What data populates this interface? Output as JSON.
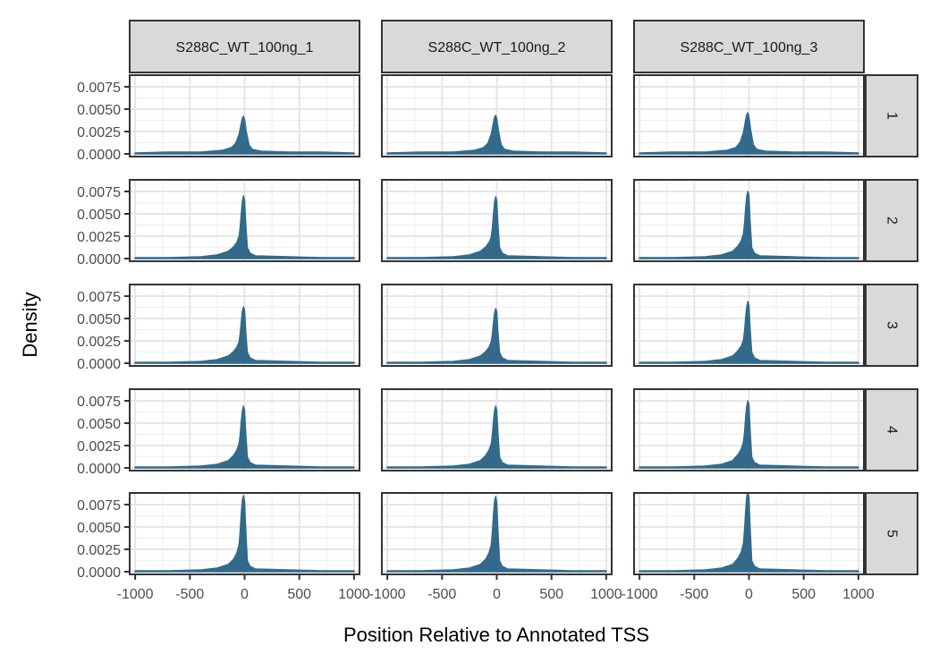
{
  "chart_data": {
    "type": "area",
    "facet_columns": [
      "S288C_WT_100ng_1",
      "S288C_WT_100ng_2",
      "S288C_WT_100ng_3"
    ],
    "facet_rows": [
      "1",
      "2",
      "3",
      "4",
      "5"
    ],
    "xlabel": "Position Relative to Annotated TSS",
    "ylabel": "Density",
    "xlim": [
      -1050,
      1050
    ],
    "ylim": [
      -0.0003,
      0.0088
    ],
    "x_ticks": [
      -1000,
      -500,
      0,
      500,
      1000
    ],
    "x_tick_labels": [
      "-1000",
      "-500",
      "0",
      "500",
      "1000"
    ],
    "y_ticks": [
      0,
      0.0025,
      0.005,
      0.0075
    ],
    "y_tick_labels": [
      "0.0000",
      "0.0025",
      "0.0050",
      "0.0075"
    ],
    "grid": true,
    "fill_color": "#336a8b",
    "panels": [
      {
        "row": "1",
        "col": "S288C_WT_100ng_1",
        "x": [
          -1000,
          -700,
          -400,
          -200,
          -120,
          -80,
          -50,
          -30,
          -20,
          -10,
          0,
          15,
          40,
          70,
          150,
          400,
          700,
          1000
        ],
        "y": [
          0.0001,
          0.0002,
          0.0002,
          0.0004,
          0.0007,
          0.0012,
          0.0022,
          0.0034,
          0.004,
          0.0042,
          0.0038,
          0.0025,
          0.001,
          0.0005,
          0.0003,
          0.0002,
          0.0002,
          0.0001
        ]
      },
      {
        "row": "1",
        "col": "S288C_WT_100ng_2",
        "x": [
          -1000,
          -700,
          -400,
          -200,
          -120,
          -80,
          -50,
          -30,
          -20,
          -10,
          0,
          15,
          40,
          70,
          150,
          400,
          700,
          1000
        ],
        "y": [
          0.0001,
          0.0002,
          0.0002,
          0.0004,
          0.0007,
          0.0012,
          0.0022,
          0.0035,
          0.0041,
          0.0043,
          0.0039,
          0.0026,
          0.001,
          0.0005,
          0.0003,
          0.0002,
          0.0002,
          0.0001
        ]
      },
      {
        "row": "1",
        "col": "S288C_WT_100ng_3",
        "x": [
          -1000,
          -700,
          -400,
          -200,
          -120,
          -80,
          -50,
          -30,
          -20,
          -10,
          0,
          15,
          40,
          70,
          150,
          400,
          700,
          1000
        ],
        "y": [
          0.0001,
          0.0002,
          0.0002,
          0.0004,
          0.0007,
          0.0013,
          0.0024,
          0.0038,
          0.0044,
          0.0046,
          0.0041,
          0.0027,
          0.001,
          0.0005,
          0.0003,
          0.0002,
          0.0002,
          0.0001
        ]
      },
      {
        "row": "2",
        "col": "S288C_WT_100ng_1",
        "x": [
          -1000,
          -700,
          -400,
          -250,
          -150,
          -100,
          -70,
          -50,
          -40,
          -30,
          -20,
          -10,
          0,
          10,
          25,
          50,
          100,
          400,
          700,
          1000
        ],
        "y": [
          0.0001,
          0.0001,
          0.0002,
          0.0004,
          0.0008,
          0.0013,
          0.0018,
          0.0025,
          0.0035,
          0.005,
          0.0064,
          0.007,
          0.0065,
          0.004,
          0.0012,
          0.0006,
          0.0003,
          0.0002,
          0.0001,
          0.0001
        ]
      },
      {
        "row": "2",
        "col": "S288C_WT_100ng_2",
        "x": [
          -1000,
          -700,
          -400,
          -250,
          -150,
          -100,
          -70,
          -50,
          -40,
          -30,
          -20,
          -10,
          0,
          10,
          25,
          50,
          100,
          400,
          700,
          1000
        ],
        "y": [
          0.0001,
          0.0001,
          0.0002,
          0.0004,
          0.0008,
          0.0013,
          0.0018,
          0.0024,
          0.0034,
          0.0049,
          0.0063,
          0.0069,
          0.0064,
          0.0039,
          0.0012,
          0.0006,
          0.0003,
          0.0002,
          0.0001,
          0.0001
        ]
      },
      {
        "row": "2",
        "col": "S288C_WT_100ng_3",
        "x": [
          -1000,
          -700,
          -400,
          -250,
          -150,
          -100,
          -70,
          -50,
          -40,
          -30,
          -20,
          -10,
          0,
          10,
          25,
          50,
          100,
          400,
          700,
          1000
        ],
        "y": [
          0.0001,
          0.0001,
          0.0002,
          0.0004,
          0.0008,
          0.0014,
          0.002,
          0.0028,
          0.004,
          0.0056,
          0.007,
          0.0075,
          0.007,
          0.0042,
          0.0012,
          0.0006,
          0.0003,
          0.0002,
          0.0001,
          0.0001
        ]
      },
      {
        "row": "3",
        "col": "S288C_WT_100ng_1",
        "x": [
          -1000,
          -700,
          -400,
          -250,
          -150,
          -100,
          -70,
          -50,
          -40,
          -30,
          -20,
          -10,
          0,
          10,
          25,
          50,
          100,
          400,
          700,
          1000
        ],
        "y": [
          0.0001,
          0.0001,
          0.0002,
          0.0004,
          0.0008,
          0.0013,
          0.0018,
          0.0024,
          0.0033,
          0.0046,
          0.0058,
          0.0063,
          0.0059,
          0.0036,
          0.0012,
          0.0006,
          0.0003,
          0.0002,
          0.0001,
          0.0001
        ]
      },
      {
        "row": "3",
        "col": "S288C_WT_100ng_2",
        "x": [
          -1000,
          -700,
          -400,
          -250,
          -150,
          -100,
          -70,
          -50,
          -40,
          -30,
          -20,
          -10,
          0,
          10,
          25,
          50,
          100,
          400,
          700,
          1000
        ],
        "y": [
          0.0001,
          0.0001,
          0.0002,
          0.0004,
          0.0008,
          0.0013,
          0.0018,
          0.0024,
          0.0032,
          0.0045,
          0.0056,
          0.0061,
          0.0057,
          0.0035,
          0.0012,
          0.0006,
          0.0003,
          0.0002,
          0.0001,
          0.0001
        ]
      },
      {
        "row": "3",
        "col": "S288C_WT_100ng_3",
        "x": [
          -1000,
          -700,
          -400,
          -250,
          -150,
          -100,
          -70,
          -50,
          -40,
          -30,
          -20,
          -10,
          0,
          10,
          25,
          50,
          100,
          400,
          700,
          1000
        ],
        "y": [
          0.0001,
          0.0001,
          0.0002,
          0.0004,
          0.0008,
          0.0014,
          0.0019,
          0.0026,
          0.0036,
          0.0051,
          0.0063,
          0.0069,
          0.0064,
          0.0039,
          0.0012,
          0.0006,
          0.0003,
          0.0002,
          0.0001,
          0.0001
        ]
      },
      {
        "row": "4",
        "col": "S288C_WT_100ng_1",
        "x": [
          -1000,
          -700,
          -400,
          -250,
          -150,
          -100,
          -70,
          -50,
          -40,
          -30,
          -20,
          -10,
          0,
          10,
          25,
          50,
          100,
          400,
          700,
          1000
        ],
        "y": [
          0.0001,
          0.0001,
          0.0002,
          0.0004,
          0.0008,
          0.0014,
          0.002,
          0.0027,
          0.0037,
          0.0052,
          0.0064,
          0.0069,
          0.0064,
          0.004,
          0.0012,
          0.0006,
          0.0003,
          0.0002,
          0.0001,
          0.0001
        ]
      },
      {
        "row": "4",
        "col": "S288C_WT_100ng_2",
        "x": [
          -1000,
          -700,
          -400,
          -250,
          -150,
          -100,
          -70,
          -50,
          -40,
          -30,
          -20,
          -10,
          0,
          10,
          25,
          50,
          100,
          400,
          700,
          1000
        ],
        "y": [
          0.0001,
          0.0001,
          0.0002,
          0.0004,
          0.0008,
          0.0014,
          0.002,
          0.0027,
          0.0037,
          0.0052,
          0.0064,
          0.0069,
          0.0064,
          0.004,
          0.0012,
          0.0006,
          0.0003,
          0.0002,
          0.0001,
          0.0001
        ]
      },
      {
        "row": "4",
        "col": "S288C_WT_100ng_3",
        "x": [
          -1000,
          -700,
          -400,
          -250,
          -150,
          -100,
          -70,
          -50,
          -40,
          -30,
          -20,
          -10,
          0,
          10,
          25,
          50,
          100,
          400,
          700,
          1000
        ],
        "y": [
          0.0001,
          0.0001,
          0.0002,
          0.0004,
          0.0008,
          0.0015,
          0.0021,
          0.0029,
          0.004,
          0.0057,
          0.0069,
          0.0075,
          0.007,
          0.0043,
          0.0012,
          0.0006,
          0.0003,
          0.0002,
          0.0001,
          0.0001
        ]
      },
      {
        "row": "5",
        "col": "S288C_WT_100ng_1",
        "x": [
          -1000,
          -700,
          -400,
          -250,
          -150,
          -100,
          -70,
          -50,
          -40,
          -30,
          -20,
          -10,
          0,
          10,
          25,
          50,
          100,
          400,
          700,
          1000
        ],
        "y": [
          0.0001,
          0.0001,
          0.0002,
          0.0004,
          0.0008,
          0.0014,
          0.0021,
          0.003,
          0.0045,
          0.0065,
          0.008,
          0.0085,
          0.0078,
          0.0048,
          0.0012,
          0.0006,
          0.0003,
          0.0002,
          0.0001,
          0.0001
        ]
      },
      {
        "row": "5",
        "col": "S288C_WT_100ng_2",
        "x": [
          -1000,
          -700,
          -400,
          -250,
          -150,
          -100,
          -70,
          -50,
          -40,
          -30,
          -20,
          -10,
          0,
          10,
          25,
          50,
          100,
          400,
          700,
          1000
        ],
        "y": [
          0.0001,
          0.0001,
          0.0002,
          0.0004,
          0.0008,
          0.0014,
          0.0021,
          0.003,
          0.0044,
          0.0064,
          0.0079,
          0.0084,
          0.0077,
          0.0047,
          0.0012,
          0.0006,
          0.0003,
          0.0002,
          0.0001,
          0.0001
        ]
      },
      {
        "row": "5",
        "col": "S288C_WT_100ng_3",
        "x": [
          -1000,
          -700,
          -400,
          -250,
          -150,
          -100,
          -70,
          -50,
          -40,
          -30,
          -20,
          -10,
          0,
          10,
          25,
          50,
          100,
          400,
          700,
          1000
        ],
        "y": [
          0.0001,
          0.0001,
          0.0002,
          0.0004,
          0.0008,
          0.0015,
          0.0022,
          0.0032,
          0.0047,
          0.0068,
          0.0084,
          0.0089,
          0.0082,
          0.005,
          0.0012,
          0.0006,
          0.0003,
          0.0002,
          0.0001,
          0.0001
        ]
      }
    ]
  }
}
